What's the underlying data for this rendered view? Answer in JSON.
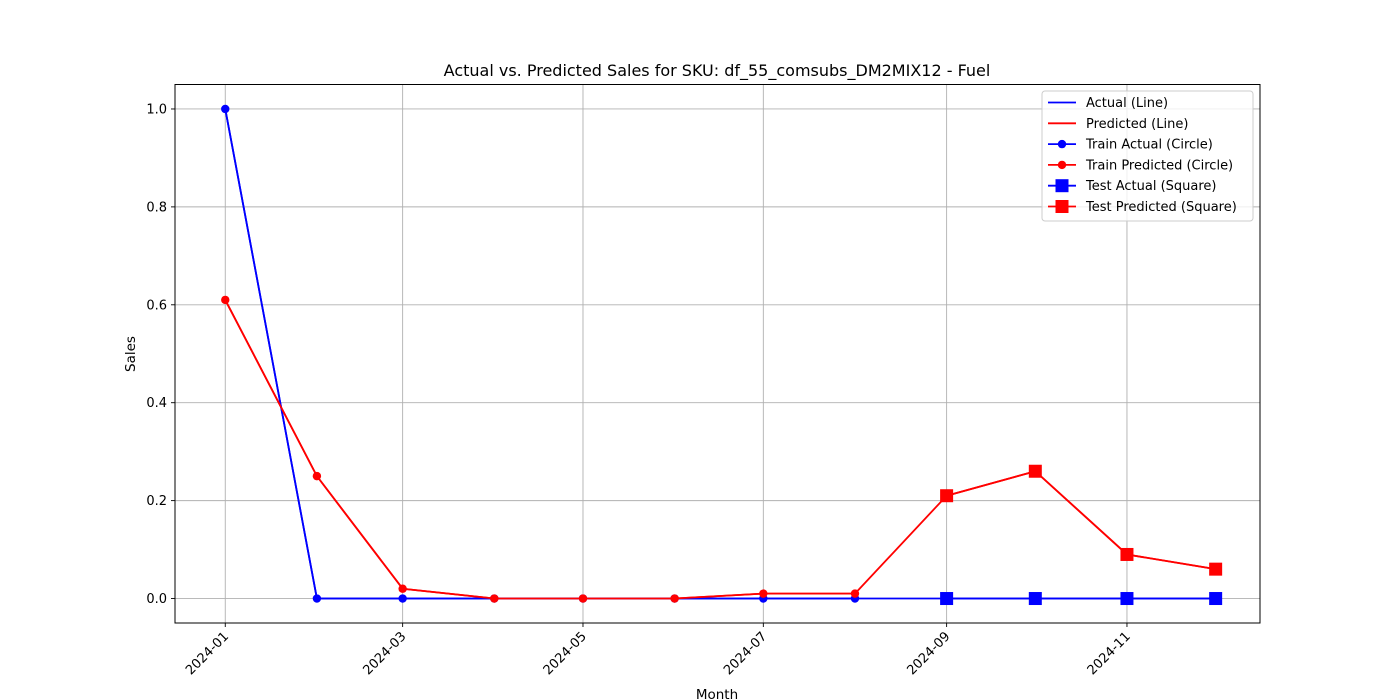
{
  "chart_data": {
    "type": "line",
    "title": "Actual vs. Predicted Sales for SKU: df_55_comsubs_DM2MIX12 - Fuel",
    "xlabel": "Month",
    "ylabel": "Sales",
    "ylim": [
      -0.05,
      1.05
    ],
    "xlim": [
      "2023-12-15",
      "2024-12-16"
    ],
    "grid": true,
    "legend_position": "top-right",
    "x_tick_labels": [
      "2024-01",
      "2024-03",
      "2024-05",
      "2024-07",
      "2024-09",
      "2024-11"
    ],
    "y_tick_labels": [
      "0.0",
      "0.2",
      "0.4",
      "0.6",
      "0.8",
      "1.0"
    ],
    "colors": {
      "actual": "#0000ff",
      "predicted": "#ff0000",
      "grid": "#b0b0b0"
    },
    "x": [
      "2024-01-01",
      "2024-02-01",
      "2024-03-01",
      "2024-04-01",
      "2024-05-01",
      "2024-06-01",
      "2024-07-01",
      "2024-08-01",
      "2024-09-01",
      "2024-10-01",
      "2024-11-01",
      "2024-12-01"
    ],
    "series": [
      {
        "name": "Actual (Line)",
        "role": "line",
        "color": "#0000ff",
        "x": [
          "2024-01-01",
          "2024-02-01",
          "2024-03-01",
          "2024-04-01",
          "2024-05-01",
          "2024-06-01",
          "2024-07-01",
          "2024-08-01",
          "2024-09-01",
          "2024-10-01",
          "2024-11-01",
          "2024-12-01"
        ],
        "values": [
          1.0,
          0.0,
          0.0,
          0.0,
          0.0,
          0.0,
          0.0,
          0.0,
          0.0,
          0.0,
          0.0,
          0.0
        ]
      },
      {
        "name": "Predicted (Line)",
        "role": "line",
        "color": "#ff0000",
        "x": [
          "2024-01-01",
          "2024-02-01",
          "2024-03-01",
          "2024-04-01",
          "2024-05-01",
          "2024-06-01",
          "2024-07-01",
          "2024-08-01",
          "2024-09-01",
          "2024-10-01",
          "2024-11-01",
          "2024-12-01"
        ],
        "values": [
          0.61,
          0.25,
          0.02,
          0.0,
          0.0,
          0.0,
          0.01,
          0.01,
          0.21,
          0.26,
          0.09,
          0.06
        ]
      },
      {
        "name": "Train Actual (Circle)",
        "role": "circle",
        "color": "#0000ff",
        "x": [
          "2024-01-01",
          "2024-02-01",
          "2024-03-01",
          "2024-04-01",
          "2024-05-01",
          "2024-06-01",
          "2024-07-01",
          "2024-08-01"
        ],
        "values": [
          1.0,
          0.0,
          0.0,
          0.0,
          0.0,
          0.0,
          0.0,
          0.0
        ]
      },
      {
        "name": "Train Predicted (Circle)",
        "role": "circle",
        "color": "#ff0000",
        "x": [
          "2024-01-01",
          "2024-02-01",
          "2024-03-01",
          "2024-04-01",
          "2024-05-01",
          "2024-06-01",
          "2024-07-01",
          "2024-08-01"
        ],
        "values": [
          0.61,
          0.25,
          0.02,
          0.0,
          0.0,
          0.0,
          0.01,
          0.01
        ]
      },
      {
        "name": "Test Actual (Square)",
        "role": "square",
        "color": "#0000ff",
        "x": [
          "2024-09-01",
          "2024-10-01",
          "2024-11-01",
          "2024-12-01"
        ],
        "values": [
          0.0,
          0.0,
          0.0,
          0.0
        ]
      },
      {
        "name": "Test Predicted (Square)",
        "role": "square",
        "color": "#ff0000",
        "x": [
          "2024-09-01",
          "2024-10-01",
          "2024-11-01",
          "2024-12-01"
        ],
        "values": [
          0.21,
          0.26,
          0.09,
          0.06
        ]
      }
    ]
  }
}
